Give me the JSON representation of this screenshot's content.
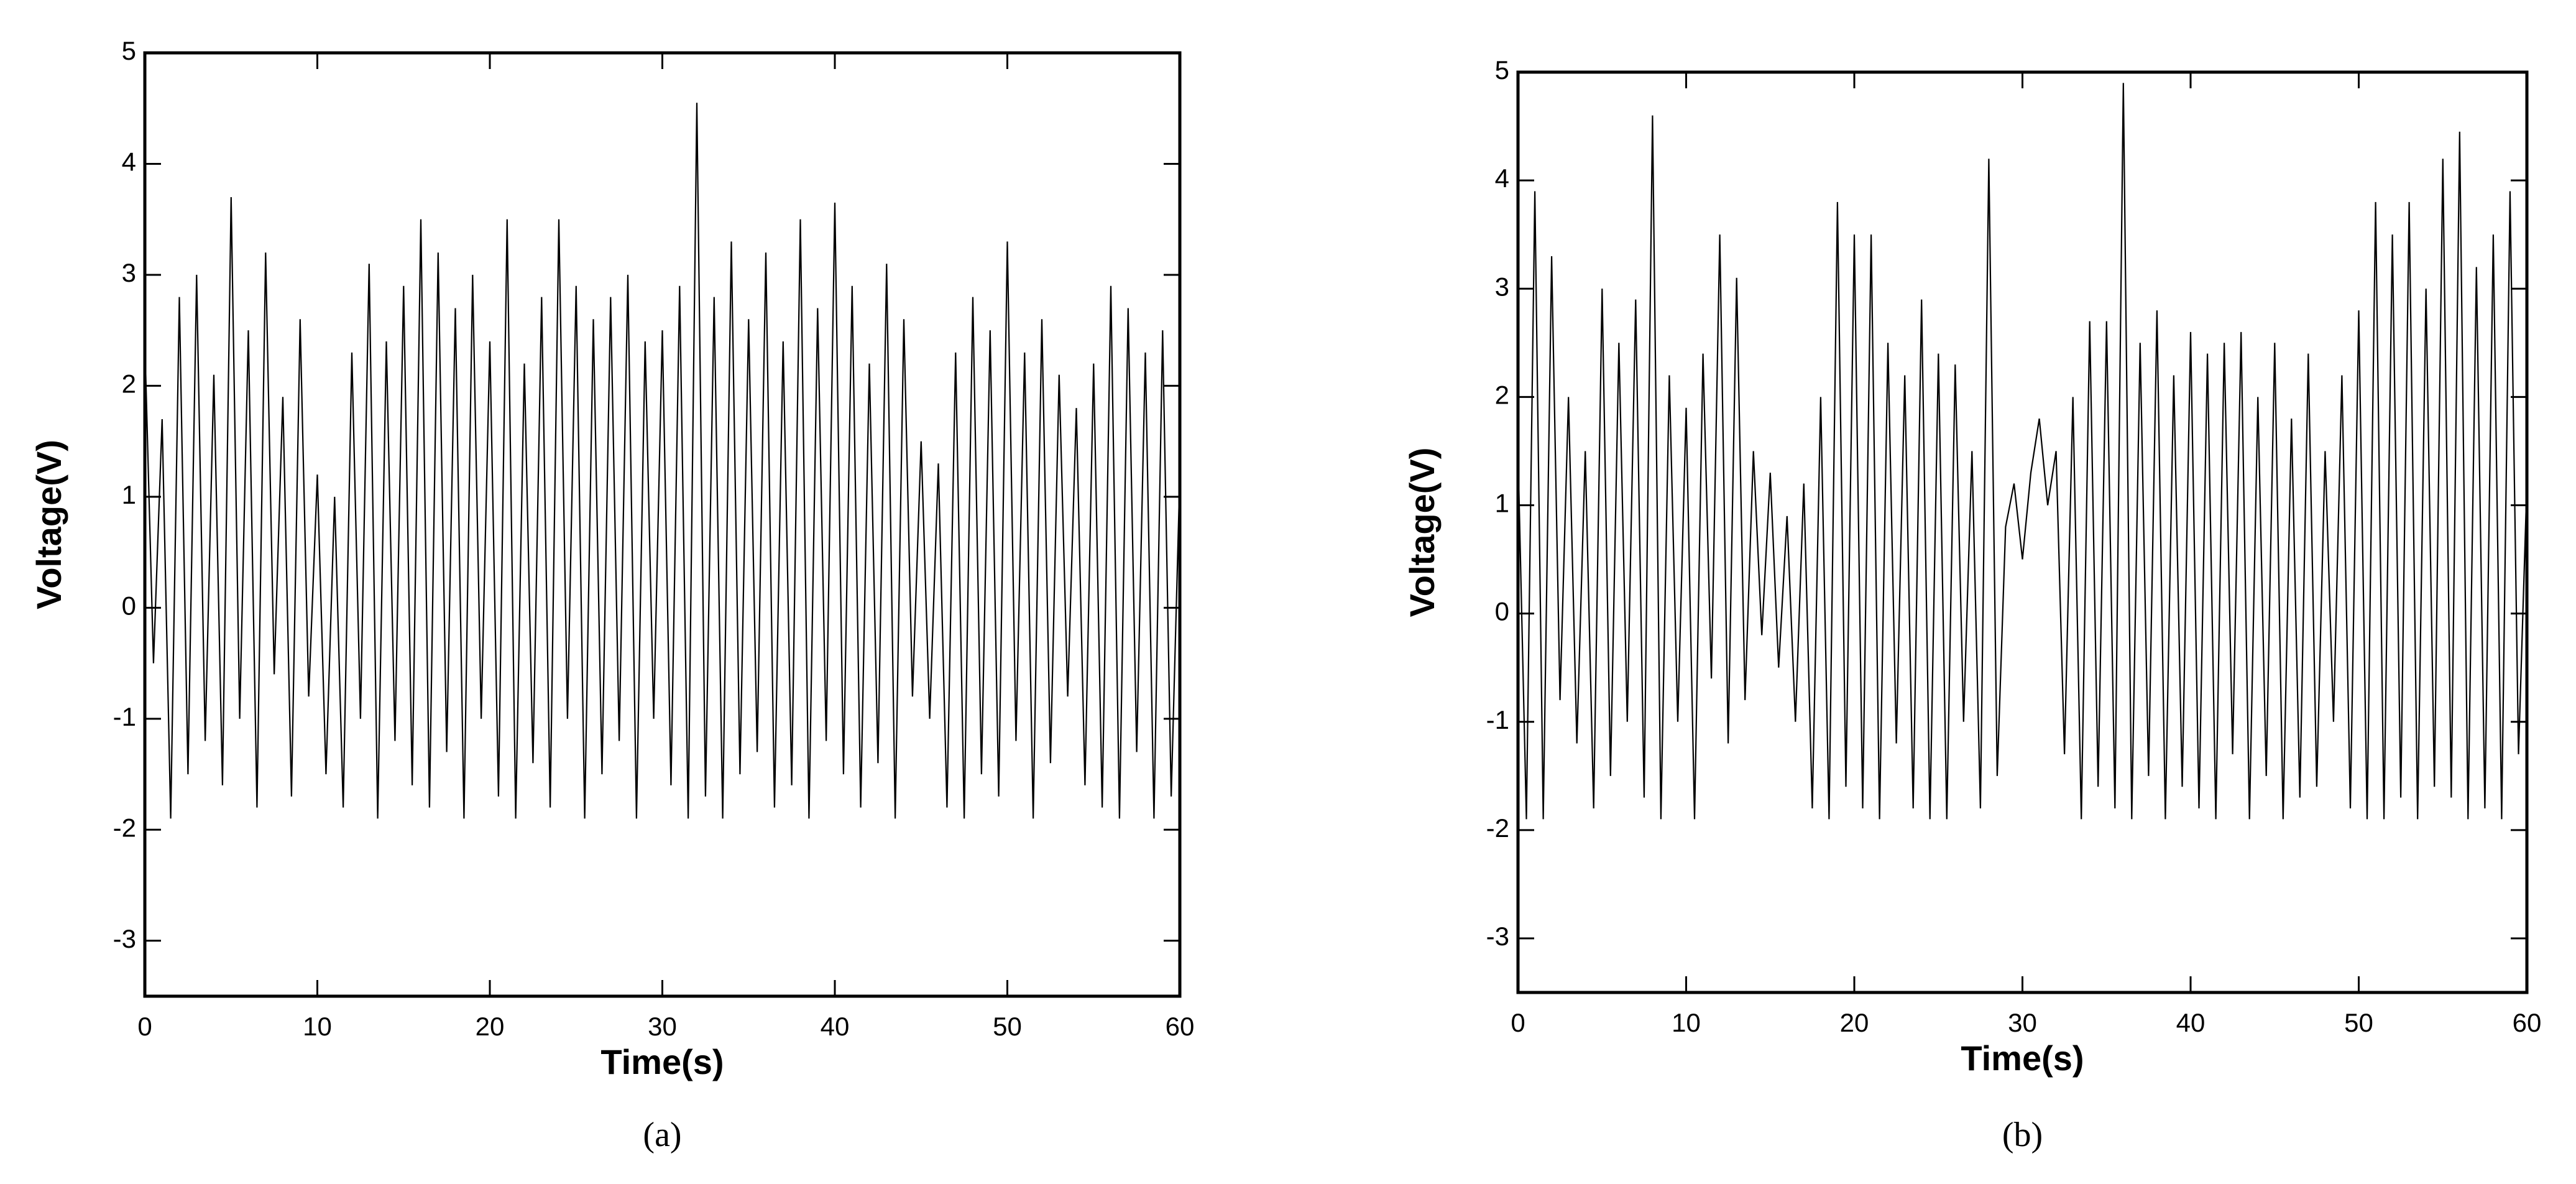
{
  "chart_data": [
    {
      "type": "line",
      "caption": "(a)",
      "xlabel": "Time(s)",
      "ylabel": "Voltage(V)",
      "xlim": [
        0,
        60
      ],
      "xticks": [
        0,
        10,
        20,
        30,
        40,
        50,
        60
      ],
      "ylim": [
        -3.5,
        5
      ],
      "yticks": [
        -3,
        -2,
        -1,
        0,
        1,
        2,
        3,
        4,
        5
      ],
      "color": "#000000",
      "x": [
        0,
        0.5,
        1,
        1.5,
        2,
        2.5,
        3,
        3.5,
        4,
        4.5,
        5,
        5.5,
        6,
        6.5,
        7,
        7.5,
        8,
        8.5,
        9,
        9.5,
        10,
        10.5,
        11,
        11.5,
        12,
        12.5,
        13,
        13.5,
        14,
        14.5,
        15,
        15.5,
        16,
        16.5,
        17,
        17.5,
        18,
        18.5,
        19,
        19.5,
        20,
        20.5,
        21,
        21.5,
        22,
        22.5,
        23,
        23.5,
        24,
        24.5,
        25,
        25.5,
        26,
        26.5,
        27,
        27.5,
        28,
        28.5,
        29,
        29.5,
        30,
        30.5,
        31,
        31.5,
        32,
        32.5,
        33,
        33.5,
        34,
        34.5,
        35,
        35.5,
        36,
        36.5,
        37,
        37.5,
        38,
        38.5,
        39,
        39.5,
        40,
        40.5,
        41,
        41.5,
        42,
        42.5,
        43,
        43.5,
        44,
        44.5,
        45,
        45.5,
        46,
        46.5,
        47,
        47.5,
        48,
        48.5,
        49,
        49.5,
        50,
        50.5,
        51,
        51.5,
        52,
        52.5,
        53,
        53.5,
        54,
        54.5,
        55,
        55.5,
        56,
        56.5,
        57,
        57.5,
        58,
        58.5,
        59,
        59.5,
        60
      ],
      "values": [
        2.4,
        -0.5,
        1.7,
        -1.9,
        2.8,
        -1.5,
        3.0,
        -1.2,
        2.1,
        -1.6,
        3.7,
        -1.0,
        2.5,
        -1.8,
        3.2,
        -0.6,
        1.9,
        -1.7,
        2.6,
        -0.8,
        1.2,
        -1.5,
        1.0,
        -1.8,
        2.3,
        -1.0,
        3.1,
        -1.9,
        2.4,
        -1.2,
        2.9,
        -1.6,
        3.5,
        -1.8,
        3.2,
        -1.3,
        2.7,
        -1.9,
        3.0,
        -1.0,
        2.4,
        -1.7,
        3.5,
        -1.9,
        2.2,
        -1.4,
        2.8,
        -1.8,
        3.5,
        -1.0,
        2.9,
        -1.9,
        2.6,
        -1.5,
        2.8,
        -1.2,
        3.0,
        -1.9,
        2.4,
        -1.0,
        2.5,
        -1.6,
        2.9,
        -1.9,
        4.55,
        -1.7,
        2.8,
        -1.9,
        3.3,
        -1.5,
        2.6,
        -1.3,
        3.2,
        -1.8,
        2.4,
        -1.6,
        3.5,
        -1.9,
        2.7,
        -1.2,
        3.65,
        -1.5,
        2.9,
        -1.8,
        2.2,
        -1.4,
        3.1,
        -1.9,
        2.6,
        -0.8,
        1.5,
        -1.0,
        1.3,
        -1.8,
        2.3,
        -1.9,
        2.8,
        -1.5,
        2.5,
        -1.7,
        3.3,
        -1.2,
        2.3,
        -1.9,
        2.6,
        -1.4,
        2.1,
        -0.8,
        1.8,
        -1.6,
        2.2,
        -1.8,
        2.9,
        -1.9,
        2.7,
        -1.3,
        2.3,
        -1.9,
        2.5,
        -1.7,
        1.2
      ]
    },
    {
      "type": "line",
      "caption": "(b)",
      "xlabel": "Time(s)",
      "ylabel": "Voltage(V)",
      "xlim": [
        0,
        60
      ],
      "xticks": [
        0,
        10,
        20,
        30,
        40,
        50,
        60
      ],
      "ylim": [
        -3.5,
        5
      ],
      "yticks": [
        -3,
        -2,
        -1,
        0,
        1,
        2,
        3,
        4,
        5
      ],
      "color": "#000000",
      "x": [
        0,
        0.5,
        1,
        1.5,
        2,
        2.5,
        3,
        3.5,
        4,
        4.5,
        5,
        5.5,
        6,
        6.5,
        7,
        7.5,
        8,
        8.5,
        9,
        9.5,
        10,
        10.5,
        11,
        11.5,
        12,
        12.5,
        13,
        13.5,
        14,
        14.5,
        15,
        15.5,
        16,
        16.5,
        17,
        17.5,
        18,
        18.5,
        19,
        19.5,
        20,
        20.5,
        21,
        21.5,
        22,
        22.5,
        23,
        23.5,
        24,
        24.5,
        25,
        25.5,
        26,
        26.5,
        27,
        27.5,
        28,
        28.5,
        29,
        29.5,
        30,
        30.5,
        31,
        31.5,
        32,
        32.5,
        33,
        33.5,
        34,
        34.5,
        35,
        35.5,
        36,
        36.5,
        37,
        37.5,
        38,
        38.5,
        39,
        39.5,
        40,
        40.5,
        41,
        41.5,
        42,
        42.5,
        43,
        43.5,
        44,
        44.5,
        45,
        45.5,
        46,
        46.5,
        47,
        47.5,
        48,
        48.5,
        49,
        49.5,
        50,
        50.5,
        51,
        51.5,
        52,
        52.5,
        53,
        53.5,
        54,
        54.5,
        55,
        55.5,
        56,
        56.5,
        57,
        57.5,
        58,
        58.5,
        59,
        59.5,
        60
      ],
      "values": [
        1.5,
        -1.9,
        3.9,
        -1.9,
        3.3,
        -0.8,
        2.0,
        -1.2,
        1.5,
        -1.8,
        3.0,
        -1.5,
        2.5,
        -1.0,
        2.9,
        -1.7,
        4.6,
        -1.9,
        2.2,
        -1.0,
        1.9,
        -1.9,
        2.4,
        -0.6,
        3.5,
        -1.2,
        3.1,
        -0.8,
        1.5,
        -0.2,
        1.3,
        -0.5,
        0.9,
        -1.0,
        1.2,
        -1.8,
        2.0,
        -1.9,
        3.8,
        -1.6,
        3.5,
        -1.8,
        3.5,
        -1.9,
        2.5,
        -1.2,
        2.2,
        -1.8,
        2.9,
        -1.9,
        2.4,
        -1.9,
        2.3,
        -1.0,
        1.5,
        -1.8,
        4.2,
        -1.5,
        0.8,
        1.2,
        0.5,
        1.3,
        1.8,
        1.0,
        1.5,
        -1.3,
        2.0,
        -1.9,
        2.7,
        -1.6,
        2.7,
        -1.8,
        4.9,
        -1.9,
        2.5,
        -1.5,
        2.8,
        -1.9,
        2.2,
        -1.6,
        2.6,
        -1.8,
        2.4,
        -1.9,
        2.5,
        -1.3,
        2.6,
        -1.9,
        2.0,
        -1.5,
        2.5,
        -1.9,
        1.8,
        -1.7,
        2.4,
        -1.6,
        1.5,
        -1.0,
        2.2,
        -1.8,
        2.8,
        -1.9,
        3.8,
        -1.9,
        3.5,
        -1.7,
        3.8,
        -1.9,
        3.0,
        -1.6,
        4.2,
        -1.7,
        4.45,
        -1.9,
        3.2,
        -1.8,
        3.5,
        -1.9,
        3.9,
        -1.3,
        1.2
      ]
    }
  ]
}
